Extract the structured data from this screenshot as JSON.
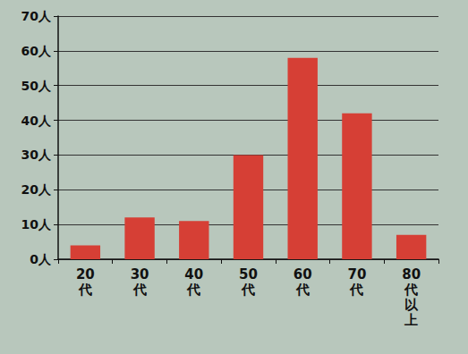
{
  "chart_data": {
    "type": "bar",
    "categories": [
      "20代",
      "30代",
      "40代",
      "50代",
      "60代",
      "70代",
      "80代以上"
    ],
    "values": [
      4,
      12,
      11,
      30,
      58,
      42,
      7
    ],
    "color": "#d63f35",
    "ylim": [
      0,
      70
    ],
    "yticks": [
      {
        "value": 0,
        "label": "0人"
      },
      {
        "value": 10,
        "label": "10人"
      },
      {
        "value": 20,
        "label": "20人"
      },
      {
        "value": 30,
        "label": "30人"
      },
      {
        "value": 40,
        "label": "40人"
      },
      {
        "value": 50,
        "label": "50人"
      },
      {
        "value": 60,
        "label": "60人"
      },
      {
        "value": 70,
        "label": "70人"
      }
    ],
    "grid": true
  }
}
